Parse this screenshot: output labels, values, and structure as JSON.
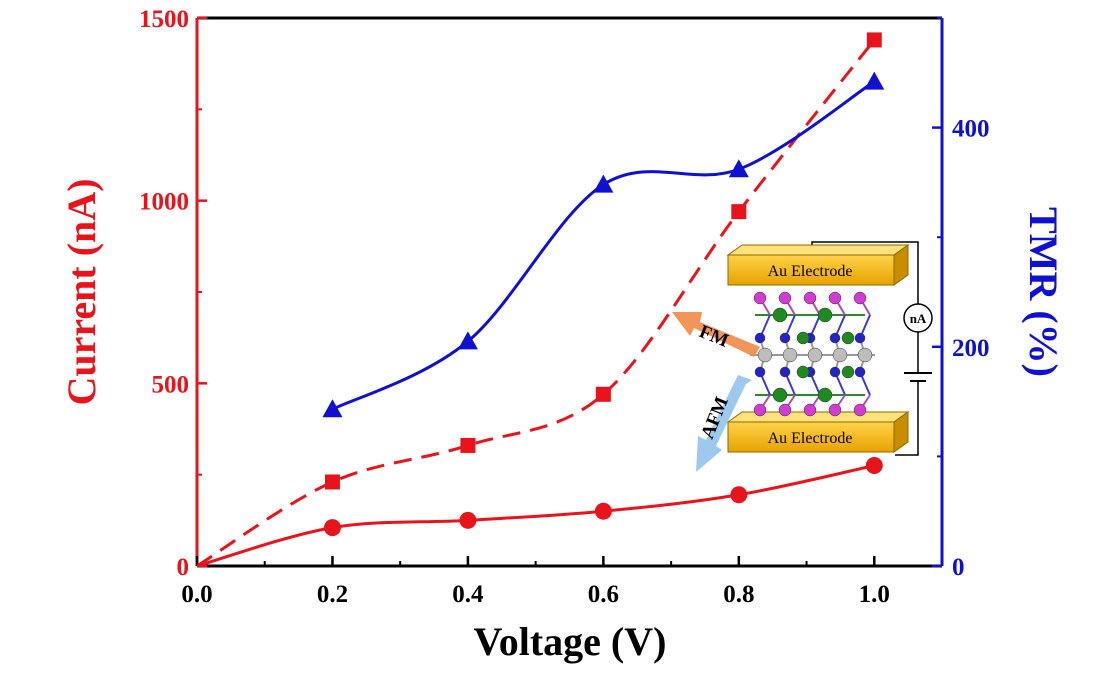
{
  "chart_data": {
    "type": "line",
    "xlabel": "Voltage (V)",
    "ylabel_left": "Current (nA)",
    "ylabel_right": "TMR (%)",
    "xlim": [
      0.0,
      1.1
    ],
    "ylim_left": [
      0,
      1500
    ],
    "ylim_right": [
      0,
      500
    ],
    "x_ticks": [
      "0.0",
      "0.2",
      "0.4",
      "0.6",
      "0.8",
      "1.0"
    ],
    "y_left_ticks": [
      "0",
      "500",
      "1000",
      "1500"
    ],
    "y_right_ticks": [
      "0",
      "200",
      "400"
    ],
    "grid": false,
    "colors": {
      "left_axis": "#e8141c",
      "right_axis": "#1010d0"
    },
    "series": [
      {
        "marker": "square",
        "axis": "left",
        "color": "#e8141c",
        "line": "dashed",
        "x": [
          0.2,
          0.4,
          0.6,
          0.8,
          1.0
        ],
        "y": [
          230,
          330,
          470,
          970,
          1440
        ]
      },
      {
        "marker": "circle",
        "axis": "left",
        "color": "#e8141c",
        "line": "solid",
        "x": [
          0.2,
          0.4,
          0.6,
          0.8,
          1.0
        ],
        "y": [
          105,
          125,
          150,
          195,
          275
        ]
      },
      {
        "marker": "triangle",
        "axis": "right",
        "color": "#1010d0",
        "line": "solid",
        "x": [
          0.2,
          0.4,
          0.6,
          0.8,
          1.0
        ],
        "y": [
          143,
          205,
          348,
          362,
          442
        ]
      }
    ],
    "inset": {
      "top_electrode": "Au Electrode",
      "bottom_electrode": "Au Electrode",
      "meter": "nA",
      "arrow_up_label": "FM",
      "arrow_down_label": "AFM"
    }
  }
}
